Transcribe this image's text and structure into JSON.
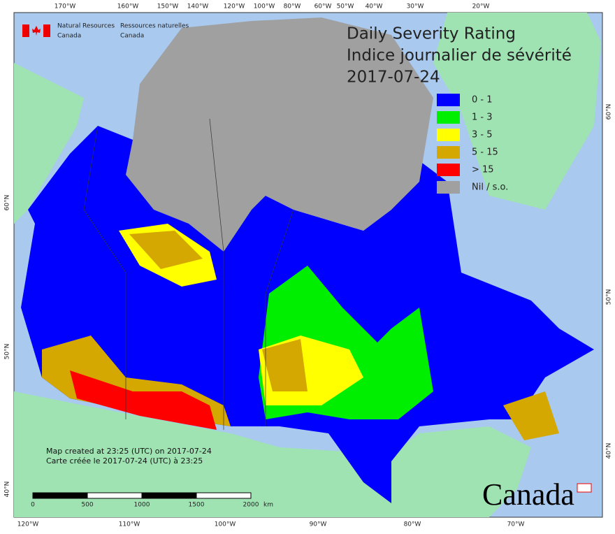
{
  "header": {
    "title": "Daily Severity Rating",
    "subtitle": "Indice journalier de sévérité",
    "date": "2017-07-24"
  },
  "agency": {
    "en": [
      "Natural Resources",
      "Canada"
    ],
    "fr": [
      "Ressources naturelles",
      "Canada"
    ]
  },
  "legend": [
    {
      "label": "0 - 1",
      "color": "#0000ff"
    },
    {
      "label": "1 - 3",
      "color": "#00ee00"
    },
    {
      "label": "3 - 5",
      "color": "#ffff00"
    },
    {
      "label": "5 - 15",
      "color": "#d4a800"
    },
    {
      "label": "> 15",
      "color": "#ff0000"
    },
    {
      "label": "Nil / s.o.",
      "color": "#a0a0a0"
    }
  ],
  "graticule": {
    "top": [
      "170°W",
      "160°W",
      "150°W",
      "140°W",
      "120°W",
      "100°W",
      "80°W",
      "60°W",
      "50°W",
      "40°W",
      "30°W",
      "20°W"
    ],
    "bottom": [
      "120°W",
      "110°W",
      "100°W",
      "90°W",
      "80°W",
      "70°W"
    ],
    "left": [
      "60°N",
      "50°N",
      "40°N"
    ],
    "right": [
      "60°N",
      "50°N",
      "40°N"
    ]
  },
  "credits": [
    "Map created at 23:25 (UTC) on 2017-07-24",
    "Carte créée le 2017-07-24 (UTC) à 23:25"
  ],
  "scale": {
    "labels": [
      "0",
      "500",
      "1000",
      "1500",
      "2000"
    ],
    "unit": "km"
  },
  "wordmark": "Canada"
}
